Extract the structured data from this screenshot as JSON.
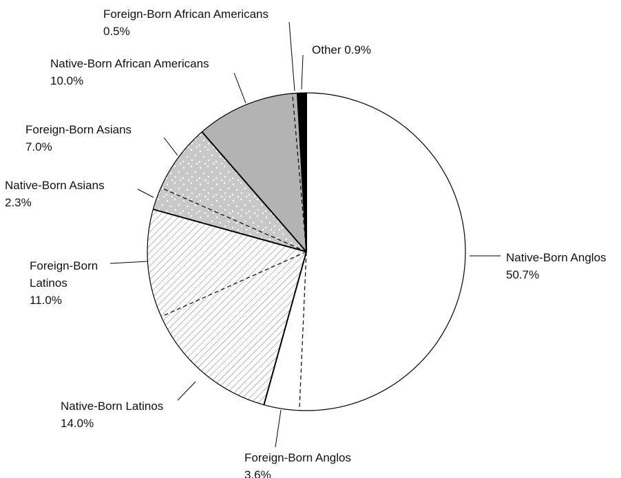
{
  "chart_data": {
    "type": "pie",
    "categories": [
      "Native-Born Anglos",
      "Foreign-Born Anglos",
      "Native-Born Latinos",
      "Foreign-Born Latinos",
      "Native-Born Asians",
      "Foreign-Born Asians",
      "Native-Born African Americans",
      "Foreign-Born African Americans",
      "Other"
    ],
    "values": [
      50.7,
      3.6,
      14.0,
      11.0,
      2.3,
      7.0,
      10.0,
      0.5,
      0.9
    ],
    "value_labels": [
      "50.7%",
      "3.6%",
      "14.0%",
      "11.0%",
      "2.3%",
      "7.0%",
      "10.0%",
      "0.5%",
      "0.9%"
    ],
    "colors": [
      "#ffffff",
      "#ffffff",
      "#ffffff",
      "#ffffff",
      "#c8c8c8",
      "#c8c8c8",
      "#b3b3b3",
      "#b3b3b3",
      "#000000"
    ],
    "patterns": [
      "none",
      "none",
      "hatch",
      "hatch",
      "dots",
      "dots",
      "none",
      "none",
      "none"
    ],
    "edge_styles": [
      "solid",
      "dashed",
      "solid",
      "dashed",
      "solid",
      "dashed",
      "solid",
      "dashed",
      "solid"
    ]
  }
}
